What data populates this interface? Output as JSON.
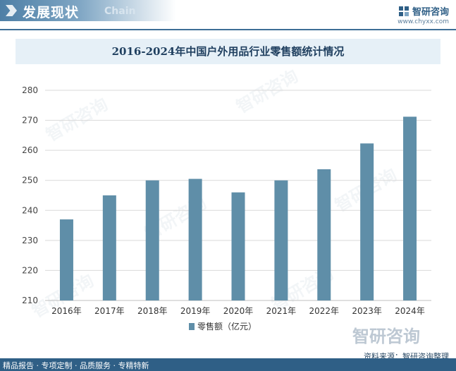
{
  "header": {
    "section_title": "发展现状",
    "section_subtitle": "Chain",
    "brand_name": "智研咨询",
    "brand_url": "www.chyxx.com"
  },
  "watermark_text": "智研咨询",
  "chart_data": {
    "type": "bar",
    "title": "2016-2024年中国户外用品行业零售额统计情况",
    "categories": [
      "2016年",
      "2017年",
      "2018年",
      "2019年",
      "2020年",
      "2021年",
      "2022年",
      "2023年",
      "2024年"
    ],
    "series": [
      {
        "name": "零售额（亿元）",
        "values": [
          237,
          245,
          250,
          250.5,
          246,
          250,
          253.7,
          262.3,
          271.2
        ]
      }
    ],
    "ylim": [
      210,
      280
    ],
    "yticks": [
      210,
      220,
      230,
      240,
      250,
      260,
      270,
      280
    ],
    "grid": true,
    "legend_position": "bottom",
    "bar_color": "#5f8ea8"
  },
  "footer": {
    "source": "资料来源：智研咨询整理",
    "tagline": "精品报告 · 专项定制 · 品质服务 · 专精特新"
  }
}
